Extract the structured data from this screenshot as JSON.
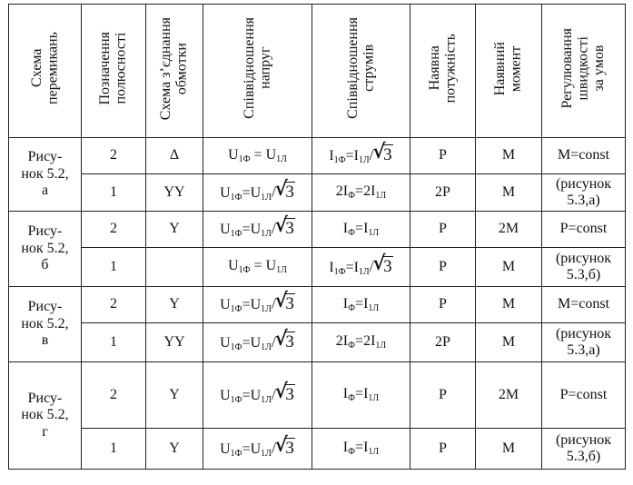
{
  "headers": [
    "Схема\nперемикань",
    "Позначення\nполюсності",
    "Схема з’єднання\nобмотки",
    "Співвідношення\nнапруг",
    "Співвідношення\nструмів",
    "Наявна\nпотужність",
    "Наявний\nмомент",
    "Регулювання\nшвидкості\nза умов"
  ],
  "groups": [
    {
      "scheme": "Рису-\nнок 5.2,\nа",
      "rows": [
        {
          "pole": "2",
          "conn": "Δ",
          "voltage": "eq",
          "current": "rt",
          "power": "P",
          "moment": "M"
        },
        {
          "pole": "1",
          "conn": "YY",
          "voltage": "rt",
          "current": "double",
          "power": "2P",
          "moment": "M"
        }
      ],
      "cond": "M=const",
      "cond_note": "(рисунок\n5.3,а)"
    },
    {
      "scheme": "Рису-\nнок 5.2,\nб",
      "rows": [
        {
          "pole": "2",
          "conn": "Y",
          "voltage": "rt",
          "current": "eq",
          "power": "P",
          "moment": "2M"
        },
        {
          "pole": "1",
          "conn": "",
          "voltage": "eq",
          "current": "rt",
          "power": "P",
          "moment": "M"
        }
      ],
      "cond": "P=const",
      "cond_note": "(рисунок\n5.3,б)"
    },
    {
      "scheme": "Рису-\nнок 5.2,\nв",
      "rows": [
        {
          "pole": "2",
          "conn": "Y",
          "voltage": "rt",
          "current": "eq",
          "power": "P",
          "moment": "M"
        },
        {
          "pole": "1",
          "conn": "YY",
          "voltage": "rt",
          "current": "double",
          "power": "2P",
          "moment": "M"
        }
      ],
      "cond": "M=const",
      "cond_note": "(рисунок\n5.3,а)"
    },
    {
      "scheme": "Рису-\nнок 5.2,\nг",
      "rows": [
        {
          "pole": "2",
          "conn": "Y",
          "voltage": "rt",
          "current": "eq",
          "power": "P",
          "moment": "2M"
        },
        {
          "pole": "1",
          "conn": "Y",
          "voltage": "rt",
          "current": "eq",
          "power": "P",
          "moment": "M"
        }
      ],
      "cond": "P=const",
      "cond_note": "(рисунок\n5.3,б)"
    }
  ],
  "formula_parts": {
    "U": "U",
    "I": "I",
    "sub_phase": "1Ф",
    "sub_line": "1Л",
    "sub_phase_short": "Ф",
    "eq": " = ",
    "eq_tight": "=",
    "slash": "/",
    "root_arg": "3",
    "two": "2"
  }
}
